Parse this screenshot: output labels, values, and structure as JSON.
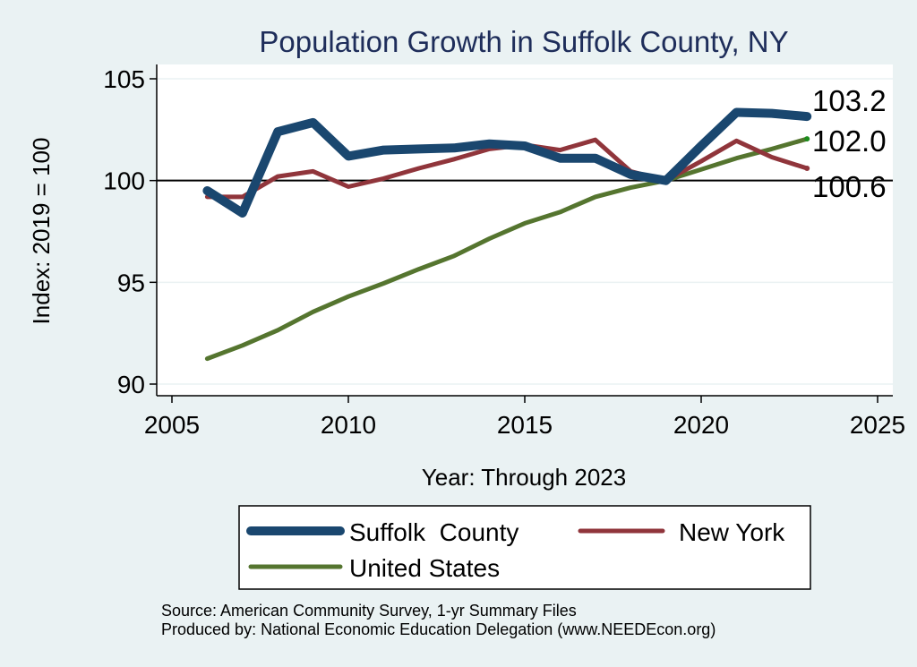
{
  "chart_data": {
    "type": "line",
    "title": "Population Growth in Suffolk County, NY",
    "xlabel": "Year: Through 2023",
    "ylabel": "Index: 2019 = 100",
    "xlim": [
      2005,
      2025
    ],
    "ylim": [
      89.5,
      105.7
    ],
    "xticks": [
      "2005",
      "2010",
      "2015",
      "2020",
      "2025"
    ],
    "yticks": [
      "90",
      "95",
      "100",
      "105"
    ],
    "reference_line": 100,
    "x": [
      2006,
      2007,
      2008,
      2009,
      2010,
      2011,
      2012,
      2013,
      2014,
      2015,
      2016,
      2017,
      2018,
      2019,
      2020,
      2021,
      2022,
      2023
    ],
    "series": [
      {
        "name": "Suffolk  County",
        "color": "#1a476f",
        "values": [
          99.5,
          98.4,
          102.4,
          102.85,
          101.2,
          101.5,
          101.55,
          101.6,
          101.8,
          101.7,
          101.1,
          101.1,
          100.3,
          100.0,
          101.7,
          103.35,
          103.3,
          103.15
        ],
        "end_label": "103.2"
      },
      {
        "name": "New York",
        "color": "#90353b",
        "values": [
          99.2,
          99.2,
          100.2,
          100.45,
          99.7,
          100.1,
          100.6,
          101.05,
          101.55,
          101.75,
          101.5,
          102.0,
          100.45,
          100.0,
          100.95,
          101.95,
          101.15,
          100.6
        ],
        "end_label": "100.6"
      },
      {
        "name": "United States",
        "color": "#55752f",
        "values": [
          91.25,
          91.9,
          92.65,
          93.55,
          94.3,
          94.95,
          95.65,
          96.3,
          97.15,
          97.9,
          98.45,
          99.2,
          99.65,
          100.0,
          100.55,
          101.1,
          101.55,
          102.05
        ],
        "end_label": "102.0"
      }
    ],
    "legend": {
      "placement": "bottom",
      "items": [
        "Suffolk  County",
        "New York",
        "United States"
      ]
    },
    "notes": [
      "Source: American Community Survey, 1-yr Summary Files",
      "Produced by: National Economic Education Delegation (www.NEEDEcon.org)"
    ]
  }
}
